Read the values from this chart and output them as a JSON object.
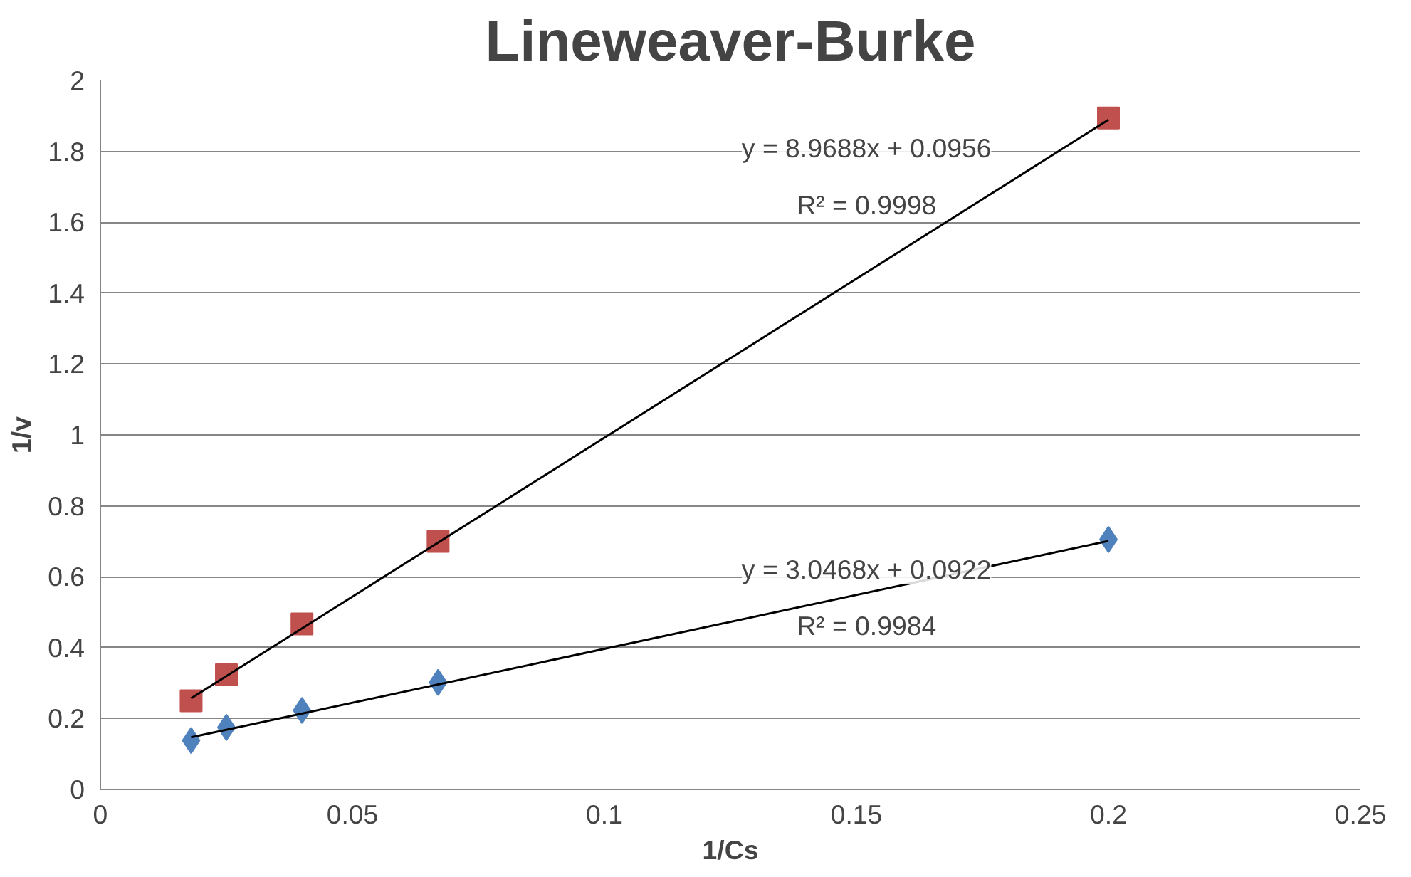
{
  "chart_data": {
    "type": "scatter",
    "title": "Lineweaver-Burke",
    "xlabel": "1/Cs",
    "ylabel": "1/v",
    "xlim": [
      0,
      0.25
    ],
    "xticks": [
      0,
      0.05,
      0.1,
      0.15,
      0.2,
      0.25
    ],
    "ylim": [
      0,
      2
    ],
    "yticks": [
      0,
      0.2,
      0.4,
      0.6,
      0.8,
      1,
      1.2,
      1.4,
      1.6,
      1.8,
      2
    ],
    "grid": "y",
    "series": [
      {
        "marker": "diamond",
        "color": "#4f81bd",
        "x": [
          0.018,
          0.025,
          0.04,
          0.067,
          0.2
        ],
        "values": [
          0.138,
          0.175,
          0.223,
          0.302,
          0.705
        ]
      },
      {
        "marker": "square",
        "color": "#c0504d",
        "x": [
          0.018,
          0.025,
          0.04,
          0.067,
          0.2
        ],
        "values": [
          0.25,
          0.324,
          0.467,
          0.7,
          1.894
        ]
      },
      {
        "type": "line",
        "color": "#000000",
        "x": [
          0.018,
          0.2
        ],
        "values": [
          0.257,
          1.889
        ]
      },
      {
        "type": "line",
        "color": "#000000",
        "x": [
          0.018,
          0.2
        ],
        "values": [
          0.147,
          0.701
        ]
      }
    ],
    "annotations": [
      "y = 8.9688x + 0.0956",
      "R² = 0.9998",
      "y = 3.0468x + 0.0922",
      "R² = 0.9984"
    ]
  }
}
